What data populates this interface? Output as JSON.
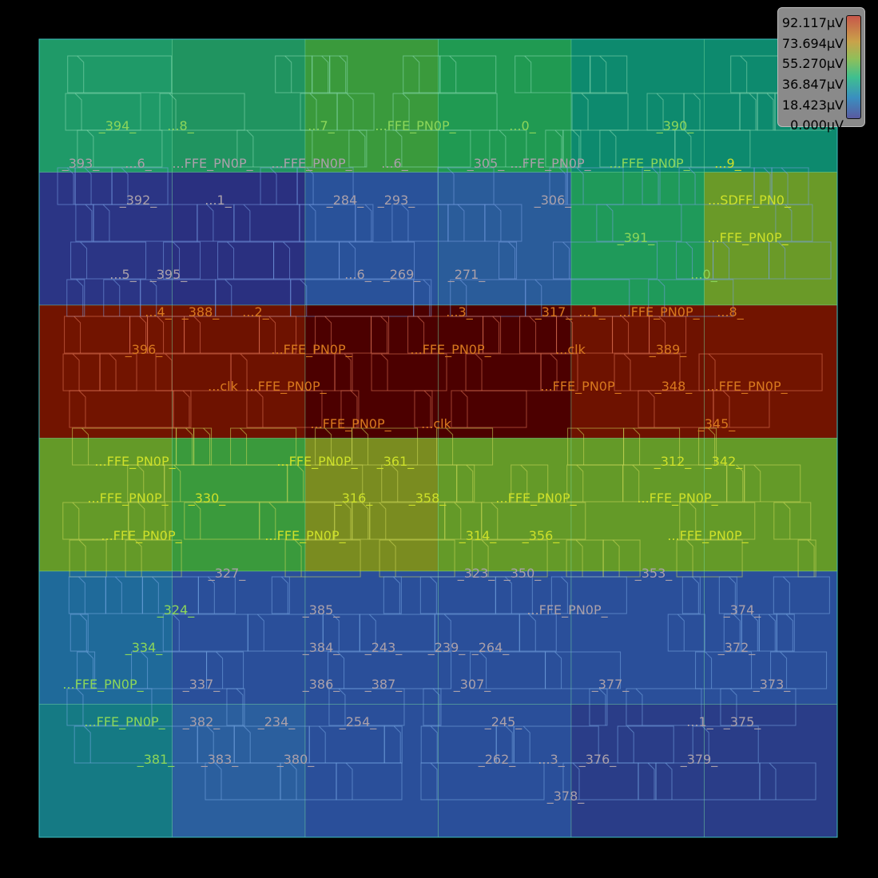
{
  "legend": {
    "labels": [
      "92.117µV",
      "73.694µV",
      "55.270µV",
      "36.847µV",
      "18.423µV",
      "0.000µV"
    ],
    "colors": {
      "max": "#c8574a",
      "min": "#5a5aa0"
    }
  },
  "heatmap": {
    "rows": 6,
    "cols": 6,
    "colors": [
      [
        "#1f9a68",
        "#209460",
        "#3a9a3c",
        "#209a52",
        "#0d8a6e",
        "#0d8a6e"
      ],
      [
        "#2b3585",
        "#2a3080",
        "#29529a",
        "#2a5c9a",
        "#1f9a5a",
        "#6a9a28"
      ],
      [
        "#721400",
        "#6e1200",
        "#4c0000",
        "#4c0000",
        "#6e1200",
        "#721400"
      ],
      [
        "#649a28",
        "#3a9a3c",
        "#7a8c20",
        "#649a28",
        "#649a28",
        "#649a28"
      ],
      [
        "#1f6a9a",
        "#2a4f9a",
        "#2a4f9a",
        "#2a4f9a",
        "#2a4f9a",
        "#2a4f9a"
      ],
      [
        "#157a84",
        "#2b5f9e",
        "#2a4f9a",
        "#2a4f9a",
        "#2a3d88",
        "#2a3d88"
      ]
    ]
  },
  "cells": [
    {
      "t": "_394_",
      "c": "#8cd65a"
    },
    {
      "t": "...8_",
      "c": "#8cd65a"
    },
    {
      "t": "...7_",
      "c": "#8cd65a"
    },
    {
      "t": "...FFE_PN0P_",
      "c": "#8cd65a"
    },
    {
      "t": "...0_",
      "c": "#8cd65a"
    },
    {
      "t": "_390_",
      "c": "#8cd65a"
    },
    {
      "t": "_393_",
      "c": "#aaa0aa"
    },
    {
      "t": "...6_",
      "c": "#aaa0aa"
    },
    {
      "t": "...FFE_PN0P_",
      "c": "#aaa0aa"
    },
    {
      "t": "...FFE_PN0P_",
      "c": "#aaa0aa"
    },
    {
      "t": "...6_",
      "c": "#aaa0aa"
    },
    {
      "t": "_305_",
      "c": "#aaa0aa"
    },
    {
      "t": "...FFE_PN0P_",
      "c": "#aaa0aa"
    },
    {
      "t": "...FFE_PN0P_",
      "c": "#8cd65a"
    },
    {
      "t": "...9_",
      "c": "#cde02a"
    },
    {
      "t": "_392_",
      "c": "#aaa0aa"
    },
    {
      "t": "...1_",
      "c": "#aaa0aa"
    },
    {
      "t": "_284_",
      "c": "#aaa0aa"
    },
    {
      "t": "_293_",
      "c": "#aaa0aa"
    },
    {
      "t": "_306_",
      "c": "#aaa0aa"
    },
    {
      "t": "...SDFF_PN0_",
      "c": "#cde02a"
    },
    {
      "t": "_391_",
      "c": "#8cd65a"
    },
    {
      "t": "...FFE_PN0P_",
      "c": "#cde02a"
    },
    {
      "t": "...5_",
      "c": "#aaa0aa"
    },
    {
      "t": "_395_",
      "c": "#aaa0aa"
    },
    {
      "t": "...6_",
      "c": "#aaa0aa"
    },
    {
      "t": "_269_",
      "c": "#aaa0aa"
    },
    {
      "t": "_271_",
      "c": "#aaa0aa"
    },
    {
      "t": "...0_",
      "c": "#8cd65a"
    },
    {
      "t": "...4_",
      "c": "#d8781e"
    },
    {
      "t": "_388_",
      "c": "#d8781e"
    },
    {
      "t": "...2_",
      "c": "#d8781e"
    },
    {
      "t": "...3_",
      "c": "#d8781e"
    },
    {
      "t": "_317_",
      "c": "#d8781e"
    },
    {
      "t": "...1_",
      "c": "#d8781e"
    },
    {
      "t": "...FFE_PN0P_",
      "c": "#d8781e"
    },
    {
      "t": "...8_",
      "c": "#d8781e"
    },
    {
      "t": "_396_",
      "c": "#d8781e"
    },
    {
      "t": "...FFE_PN0P_",
      "c": "#d8781e"
    },
    {
      "t": "...FFE_PN0P_",
      "c": "#d8781e"
    },
    {
      "t": "...clk",
      "c": "#d8781e"
    },
    {
      "t": "_389_",
      "c": "#d8781e"
    },
    {
      "t": "...clk",
      "c": "#d8781e"
    },
    {
      "t": "...FFE_PN0P_",
      "c": "#d8781e"
    },
    {
      "t": "...FFE_PN0P_",
      "c": "#d8781e"
    },
    {
      "t": "_348_",
      "c": "#d8781e"
    },
    {
      "t": "...FFE_PN0P_",
      "c": "#d8781e"
    },
    {
      "t": "...FFE_PN0P_",
      "c": "#d8781e"
    },
    {
      "t": "...clk",
      "c": "#d8781e"
    },
    {
      "t": "_345_",
      "c": "#d8781e"
    },
    {
      "t": "...FFE_PN0P_",
      "c": "#cde02a"
    },
    {
      "t": "...FFE_PN0P_",
      "c": "#cde02a"
    },
    {
      "t": "_361_",
      "c": "#cde02a"
    },
    {
      "t": "_312_",
      "c": "#cde02a"
    },
    {
      "t": "_342_",
      "c": "#cde02a"
    },
    {
      "t": "...FFE_PN0P_",
      "c": "#cde02a"
    },
    {
      "t": "_330_",
      "c": "#cde02a"
    },
    {
      "t": "_316_",
      "c": "#cde02a"
    },
    {
      "t": "_358_",
      "c": "#cde02a"
    },
    {
      "t": "...FFE_PN0P_",
      "c": "#cde02a"
    },
    {
      "t": "...FFE_PN0P_",
      "c": "#cde02a"
    },
    {
      "t": "...FFE_PN0P_",
      "c": "#cde02a"
    },
    {
      "t": "...FFE_PN0P_",
      "c": "#cde02a"
    },
    {
      "t": "_314_",
      "c": "#cde02a"
    },
    {
      "t": "_356_",
      "c": "#cde02a"
    },
    {
      "t": "...FFE_PN0P_",
      "c": "#cde02a"
    },
    {
      "t": "_327_",
      "c": "#aaa0aa"
    },
    {
      "t": "_323_",
      "c": "#aaa0aa"
    },
    {
      "t": "_350_",
      "c": "#aaa0aa"
    },
    {
      "t": "_353_",
      "c": "#aaa0aa"
    },
    {
      "t": "_324_",
      "c": "#8cd65a"
    },
    {
      "t": "_385_",
      "c": "#aaa0aa"
    },
    {
      "t": "...FFE_PN0P_",
      "c": "#aaa0aa"
    },
    {
      "t": "_374_",
      "c": "#aaa0aa"
    },
    {
      "t": "_334_",
      "c": "#8cd65a"
    },
    {
      "t": "_384_",
      "c": "#aaa0aa"
    },
    {
      "t": "_243_",
      "c": "#aaa0aa"
    },
    {
      "t": "_239_",
      "c": "#aaa0aa"
    },
    {
      "t": "_264_",
      "c": "#aaa0aa"
    },
    {
      "t": "_372_",
      "c": "#aaa0aa"
    },
    {
      "t": "...FFE_PN0P_",
      "c": "#8cd65a"
    },
    {
      "t": "_337_",
      "c": "#aaa0aa"
    },
    {
      "t": "_386_",
      "c": "#aaa0aa"
    },
    {
      "t": "_387_",
      "c": "#aaa0aa"
    },
    {
      "t": "_307_",
      "c": "#aaa0aa"
    },
    {
      "t": "_377_",
      "c": "#aaa0aa"
    },
    {
      "t": "_373_",
      "c": "#aaa0aa"
    },
    {
      "t": "...FFE_PN0P_",
      "c": "#8cd65a"
    },
    {
      "t": "_382_",
      "c": "#aaa0aa"
    },
    {
      "t": "_234_",
      "c": "#aaa0aa"
    },
    {
      "t": "_254_",
      "c": "#aaa0aa"
    },
    {
      "t": "_245_",
      "c": "#aaa0aa"
    },
    {
      "t": "...1_",
      "c": "#aaa0aa"
    },
    {
      "t": "_375_",
      "c": "#aaa0aa"
    },
    {
      "t": "_381_",
      "c": "#8cd65a"
    },
    {
      "t": "_383_",
      "c": "#aaa0aa"
    },
    {
      "t": "_380_",
      "c": "#aaa0aa"
    },
    {
      "t": "_262_",
      "c": "#aaa0aa"
    },
    {
      "t": "...3_",
      "c": "#aaa0aa"
    },
    {
      "t": "_376_",
      "c": "#aaa0aa"
    },
    {
      "t": "_379_",
      "c": "#aaa0aa"
    },
    {
      "t": "_378_",
      "c": "#aaa0aa"
    }
  ]
}
